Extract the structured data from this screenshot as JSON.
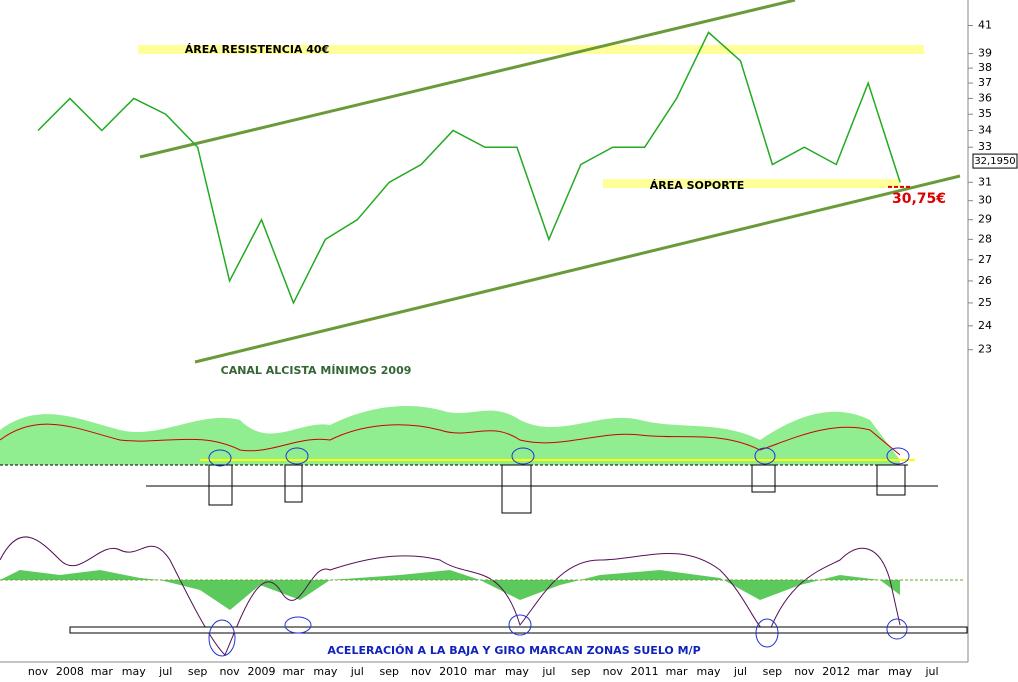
{
  "chart_data": {
    "type": "line",
    "categories": [
      "nov",
      "2008",
      "mar",
      "may",
      "jul",
      "sep",
      "nov",
      "2009",
      "mar",
      "may",
      "jul",
      "sep",
      "nov",
      "2010",
      "mar",
      "may",
      "jul",
      "sep",
      "nov",
      "2011",
      "mar",
      "may",
      "jul",
      "sep",
      "nov",
      "2012",
      "mar",
      "may",
      "jul"
    ],
    "series": [
      {
        "color": "#22aa22",
        "values": [
          34,
          36,
          34,
          36,
          35,
          33,
          26,
          29,
          25,
          28,
          29,
          31,
          32,
          34,
          33,
          33,
          28,
          32,
          33,
          33,
          36,
          40.5,
          38.5,
          32,
          33,
          32,
          37,
          31,
          null
        ]
      }
    ],
    "ylim": [
      22.5,
      42.3
    ],
    "log_scale": true,
    "yticks": [
      23,
      24,
      25,
      26,
      27,
      28,
      29,
      30,
      31,
      33,
      34,
      35,
      36,
      37,
      38,
      39,
      41
    ],
    "last_price": {
      "value": 32.195,
      "label": "32,1950"
    },
    "support": {
      "value": 30.75,
      "label": "30,75€"
    },
    "annotations": [
      "ÁREA RESISTENCIA 40€",
      "ÁREA SOPORTE",
      "CANAL ALCISTA MÍNIMOS 2009",
      "ACELERACIÓN A LA BAJA Y GIRO MARCAN ZONAS SUELO M/P"
    ]
  }
}
